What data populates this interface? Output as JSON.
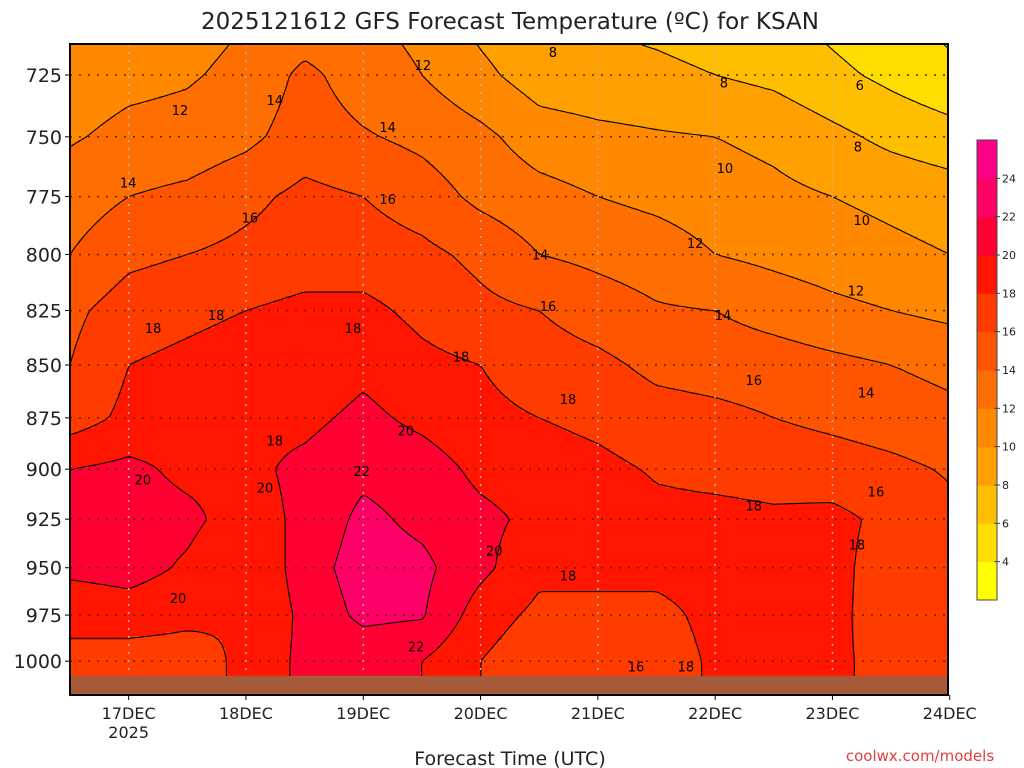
{
  "chart_data": {
    "type": "heatmap",
    "title": "2025121612 GFS Forecast Temperature (ºC) for KSAN",
    "xlabel": "Forecast Time (UTC)",
    "ylabel": "",
    "credit": "coolwx.com/models",
    "x_ticks": [
      {
        "hours": 12,
        "label": "17DEC",
        "sub": "2025"
      },
      {
        "hours": 36,
        "label": "18DEC"
      },
      {
        "hours": 60,
        "label": "19DEC"
      },
      {
        "hours": 84,
        "label": "20DEC"
      },
      {
        "hours": 108,
        "label": "21DEC"
      },
      {
        "hours": 132,
        "label": "22DEC"
      },
      {
        "hours": 156,
        "label": "23DEC"
      },
      {
        "hours": 180,
        "label": "24DEC"
      }
    ],
    "x_range_hours": [
      0,
      180
    ],
    "y_ticks": [
      725,
      750,
      775,
      800,
      825,
      850,
      875,
      900,
      925,
      950,
      975,
      1000
    ],
    "y_range_mb": [
      712,
      1018
    ],
    "y_scale": "log",
    "times_hours": [
      0,
      12,
      24,
      36,
      48,
      60,
      72,
      84,
      96,
      108,
      120,
      132,
      144,
      156,
      168,
      180
    ],
    "pressure_levels": [
      705,
      725,
      750,
      775,
      800,
      825,
      850,
      875,
      900,
      925,
      950,
      975,
      1000,
      1020
    ],
    "temperature": [
      [
        10.3,
        11,
        11.3,
        12,
        12.8,
        12.3,
        11.5,
        9.5,
        8.3,
        8,
        7.5,
        7,
        6.5,
        5.5,
        4.5,
        3.5
      ],
      [
        11,
        11.5,
        11.8,
        12.5,
        14.5,
        13,
        12,
        10.5,
        9,
        8.7,
        8.5,
        8,
        7.5,
        6.5,
        5.5,
        4.5
      ],
      [
        11.8,
        12.5,
        12.7,
        13.5,
        15,
        14.2,
        13.5,
        12.5,
        11,
        10.5,
        10.2,
        10,
        9.5,
        8.5,
        7.5,
        6.8
      ],
      [
        13,
        14,
        14.5,
        15.5,
        16.5,
        16,
        15,
        13.5,
        12.7,
        12,
        11.5,
        11,
        10.5,
        10,
        9.5,
        9
      ],
      [
        14,
        15.5,
        16,
        16.5,
        17,
        17,
        16.5,
        15.5,
        14,
        13.5,
        13,
        12,
        11.5,
        11,
        10.5,
        10
      ],
      [
        15.5,
        17,
        17.5,
        18,
        18.5,
        18.5,
        17.5,
        16.5,
        16,
        15,
        14.2,
        14,
        13.2,
        12.5,
        12,
        11.5
      ],
      [
        16,
        18,
        18.5,
        19,
        18.5,
        19.5,
        18.5,
        18,
        17,
        16.5,
        15.5,
        15.2,
        15,
        14.5,
        14,
        13.5
      ],
      [
        17,
        18.5,
        19,
        19.5,
        19.5,
        20.5,
        19.5,
        18.5,
        18,
        17.5,
        16.8,
        16.5,
        16,
        15.5,
        15,
        14.5
      ],
      [
        20,
        20.5,
        19.5,
        19.5,
        20.5,
        21.5,
        21,
        19.5,
        19,
        18.5,
        17.8,
        17.5,
        17.3,
        17,
        16.5,
        15.8
      ],
      [
        21,
        21,
        20.5,
        19,
        20.5,
        22.5,
        21.5,
        20.5,
        19.5,
        19.5,
        18.5,
        18.5,
        18.3,
        18.5,
        17.5,
        16.5
      ],
      [
        20.5,
        20.8,
        19.7,
        18,
        21,
        23,
        22.5,
        20.5,
        18.5,
        19,
        18.5,
        18.7,
        18.7,
        18.6,
        17,
        16.5
      ],
      [
        18.5,
        19,
        18.5,
        18,
        20.5,
        22.5,
        22.2,
        19,
        17.5,
        17,
        17.5,
        18.5,
        18.5,
        18.5,
        17,
        17
      ],
      [
        17.5,
        17,
        17,
        18.5,
        20.5,
        20.5,
        20,
        18,
        16.5,
        16.2,
        17,
        18.3,
        18,
        18.3,
        17.5,
        17
      ],
      [
        17.5,
        17,
        17,
        18.5,
        20.5,
        20.5,
        20,
        18,
        16.5,
        16.2,
        17,
        18.3,
        18,
        18.3,
        17.5,
        17
      ]
    ],
    "ground_below_mb": 1008,
    "levels": [
      2,
      4,
      6,
      8,
      10,
      12,
      14,
      16,
      18,
      20,
      22,
      24,
      26
    ],
    "colorbar_labels": [
      "4",
      "6",
      "8",
      "10",
      "12",
      "14",
      "16",
      "18",
      "20",
      "22",
      "24"
    ],
    "contour_labels": [
      {
        "text": "12",
        "hours": 22.5,
        "mb": 739
      },
      {
        "text": "14",
        "hours": 11.9,
        "mb": 769
      },
      {
        "text": "16",
        "hours": 36.8,
        "mb": 784
      },
      {
        "text": "18",
        "hours": 17,
        "mb": 833
      },
      {
        "text": "18",
        "hours": 29.9,
        "mb": 827
      },
      {
        "text": "14",
        "hours": 41.9,
        "mb": 735
      },
      {
        "text": "12",
        "hours": 72.2,
        "mb": 721
      },
      {
        "text": "8",
        "hours": 98.8,
        "mb": 716
      },
      {
        "text": "8",
        "hours": 133.8,
        "mb": 728
      },
      {
        "text": "6",
        "hours": 161.6,
        "mb": 729
      },
      {
        "text": "14",
        "hours": 65,
        "mb": 746
      },
      {
        "text": "16",
        "hours": 65,
        "mb": 776
      },
      {
        "text": "18",
        "hours": 57.9,
        "mb": 833
      },
      {
        "text": "20",
        "hours": 68.7,
        "mb": 881
      },
      {
        "text": "22",
        "hours": 59.7,
        "mb": 901
      },
      {
        "text": "20",
        "hours": 14.9,
        "mb": 905
      },
      {
        "text": "20",
        "hours": 39.9,
        "mb": 909
      },
      {
        "text": "18",
        "hours": 41.9,
        "mb": 886
      },
      {
        "text": "20",
        "hours": 22.1,
        "mb": 966
      },
      {
        "text": "22",
        "hours": 70.8,
        "mb": 992
      },
      {
        "text": "20",
        "hours": 86.8,
        "mb": 941
      },
      {
        "text": "18",
        "hours": 80,
        "mb": 846
      },
      {
        "text": "18",
        "hours": 101.9,
        "mb": 866
      },
      {
        "text": "16",
        "hours": 97.8,
        "mb": 823
      },
      {
        "text": "14",
        "hours": 96.2,
        "mb": 800
      },
      {
        "text": "12",
        "hours": 127.9,
        "mb": 795
      },
      {
        "text": "10",
        "hours": 134,
        "mb": 763
      },
      {
        "text": "8",
        "hours": 161.2,
        "mb": 754
      },
      {
        "text": "10",
        "hours": 162,
        "mb": 785
      },
      {
        "text": "12",
        "hours": 160.8,
        "mb": 816
      },
      {
        "text": "14",
        "hours": 133.6,
        "mb": 827
      },
      {
        "text": "16",
        "hours": 139.9,
        "mb": 857
      },
      {
        "text": "14",
        "hours": 162.9,
        "mb": 863
      },
      {
        "text": "16",
        "hours": 164.9,
        "mb": 911
      },
      {
        "text": "18",
        "hours": 139.9,
        "mb": 918
      },
      {
        "text": "18",
        "hours": 161,
        "mb": 938
      },
      {
        "text": "18",
        "hours": 101.9,
        "mb": 954
      },
      {
        "text": "16",
        "hours": 115.8,
        "mb": 1003
      },
      {
        "text": "18",
        "hours": 126,
        "mb": 1003
      }
    ],
    "colors": [
      "#ffff00",
      "#ffdd00",
      "#ffbf00",
      "#ff9f00",
      "#ff8800",
      "#ff6e00",
      "#ff5500",
      "#ff3b00",
      "#ff1500",
      "#ff0033",
      "#ff0066",
      "#ff0088"
    ],
    "ground_color": "#a65a3a"
  }
}
